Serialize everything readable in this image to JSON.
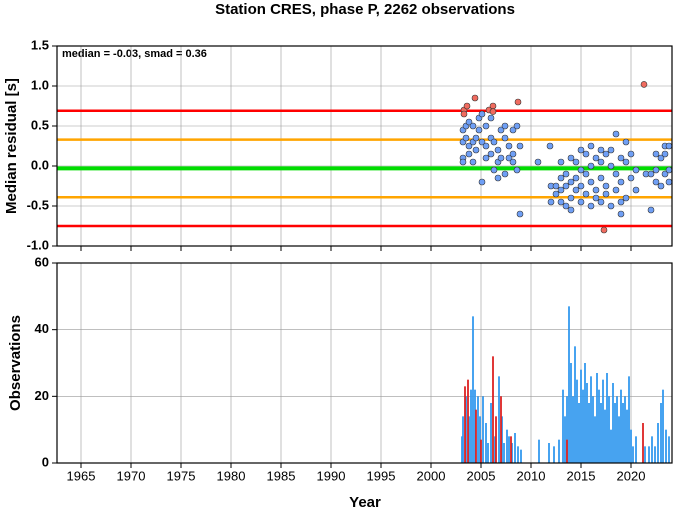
{
  "chart_data": [
    {
      "type": "scatter",
      "title": "Station CRES, phase P, 2262 observations",
      "y_label": "Median residual [s]",
      "annotation": "median = -0.03, smad = 0.36",
      "xlim": [
        1962.6,
        2024.1
      ],
      "xticks": [
        1965,
        1970,
        1975,
        1980,
        1985,
        1990,
        1995,
        2000,
        2005,
        2010,
        2015,
        2020
      ],
      "ylim": [
        -1,
        1.5
      ],
      "yticks": [
        1.5,
        {
          "value": 1,
          "label": "1.0"
        },
        0.5,
        {
          "value": 0,
          "label": "0.0"
        },
        -0.5,
        {
          "value": -1,
          "label": "-1.0"
        }
      ],
      "grid": true,
      "reference_lines": [
        {
          "value": 0.69,
          "color": "#ff0000"
        },
        {
          "value": 0.33,
          "color": "#ffa500"
        },
        {
          "value": -0.03,
          "color": "#00dd00"
        },
        {
          "value": -0.39,
          "color": "#ffa500"
        },
        {
          "value": -0.75,
          "color": "#ff0000"
        }
      ],
      "series": [
        {
          "color": "#6f9ff5",
          "x": [
            2003.2,
            2003.2,
            2003.2,
            2003.2,
            2003.5,
            2003.5,
            2003.8,
            2003.8,
            2003.8,
            2004.2,
            2004.2,
            2004.2,
            2004.5,
            2004.5,
            2004.8,
            2004.8,
            2005.1,
            2005.1,
            2005.1,
            2005.5,
            2005.5,
            2005.5,
            2006,
            2006,
            2006,
            2006.3,
            2006.3,
            2006.7,
            2006.7,
            2006.7,
            2007,
            2007,
            2007.4,
            2007.4,
            2007.4,
            2007.8,
            2007.8,
            2008.2,
            2008.2,
            2008.2,
            2008.6,
            2008.6,
            2008.9,
            2008.9,
            2010.7,
            2011.9,
            2012,
            2012,
            2012.5,
            2012.5,
            2013,
            2013,
            2013,
            2013,
            2013.5,
            2013.5,
            2013.5,
            2014,
            2014,
            2014,
            2014,
            2014.5,
            2014.5,
            2014.5,
            2015,
            2015,
            2015,
            2015,
            2015.5,
            2015.5,
            2015.5,
            2016,
            2016,
            2016,
            2016,
            2016.5,
            2016.5,
            2016.5,
            2017,
            2017,
            2017,
            2017,
            2017.5,
            2017.5,
            2017.5,
            2018,
            2018,
            2018,
            2018.5,
            2018.5,
            2018.5,
            2019,
            2019,
            2019,
            2019,
            2019.5,
            2019.5,
            2019.5,
            2020,
            2020,
            2020.5,
            2020.5,
            2021.5,
            2022,
            2022,
            2022.5,
            2022.5,
            2022.5,
            2023,
            2023,
            2023.4,
            2023.4,
            2023.4,
            2023.8,
            2023.8,
            2023.8
          ],
          "values": [
            0.3,
            0.1,
            0.05,
            0.45,
            0.5,
            0.35,
            0.25,
            0.55,
            0.15,
            0.3,
            0.5,
            0.05,
            0.35,
            0.2,
            0.45,
            0.6,
            0.3,
            -0.2,
            0.65,
            0.5,
            0.25,
            0.1,
            0.6,
            0.35,
            0.15,
            0.3,
            -0.05,
            0.2,
            -0.15,
            0.05,
            0.45,
            0.1,
            0.35,
            -0.1,
            0.5,
            0.1,
            0.25,
            0.05,
            0.45,
            0.15,
            0.5,
            -0.05,
            0.25,
            -0.6,
            0.05,
            0.25,
            -0.25,
            -0.45,
            -0.25,
            -0.35,
            0.05,
            -0.15,
            -0.3,
            -0.45,
            -0.1,
            -0.25,
            -0.5,
            0.1,
            -0.2,
            -0.4,
            -0.55,
            0.05,
            -0.15,
            -0.3,
            0.2,
            -0.05,
            -0.25,
            -0.45,
            0.15,
            -0.1,
            -0.35,
            0.25,
            0,
            -0.2,
            -0.5,
            0.1,
            -0.3,
            -0.4,
            0.2,
            0.05,
            -0.15,
            -0.45,
            0.15,
            -0.25,
            -0.35,
            0.2,
            0,
            -0.5,
            0.4,
            -0.1,
            -0.3,
            0.1,
            -0.2,
            -0.45,
            -0.6,
            0.3,
            0.05,
            -0.4,
            0.15,
            -0.15,
            -0.05,
            -0.3,
            -0.1,
            -0.55,
            -0.1,
            0.15,
            -0.05,
            -0.2,
            0.1,
            -0.25,
            0.15,
            -0.1,
            0.25,
            0.25,
            -0.05,
            -0.2
          ]
        },
        {
          "color": "#f06b5f",
          "x": [
            2003.3,
            2003.3,
            2003.6,
            2004.4,
            2005.8,
            2006.2,
            2006.2,
            2008.7,
            2017.3,
            2021.3
          ],
          "values": [
            0.7,
            0.65,
            0.75,
            0.85,
            0.7,
            0.75,
            0.68,
            0.8,
            -0.8,
            1.02
          ]
        }
      ]
    },
    {
      "type": "bar",
      "y_label": "Observations",
      "x_label": "Year",
      "xlim": [
        1962.6,
        2024.1
      ],
      "xticks": [
        1965,
        1970,
        1975,
        1980,
        1985,
        1990,
        1995,
        2000,
        2005,
        2010,
        2015,
        2020
      ],
      "ylim": [
        0,
        60
      ],
      "yticks": [
        0,
        20,
        40,
        60
      ],
      "grid": true,
      "series": [
        {
          "color": "#3399ee",
          "x": [
            2003.1,
            2003.2,
            2003.5,
            2003.8,
            2004.0,
            2004.2,
            2004.4,
            2004.7,
            2004.9,
            2005.2,
            2005.5,
            2005.7,
            2006.0,
            2006.4,
            2006.8,
            2007.1,
            2007.3,
            2007.6,
            2007.8,
            2008.1,
            2008.4,
            2008.7,
            2009.0,
            2010.8,
            2011.8,
            2012.3,
            2012.8,
            2013.2,
            2013.4,
            2013.6,
            2013.8,
            2014.0,
            2014.2,
            2014.4,
            2014.6,
            2014.8,
            2015.0,
            2015.2,
            2015.4,
            2015.6,
            2015.8,
            2016.0,
            2016.2,
            2016.4,
            2016.6,
            2016.8,
            2017.0,
            2017.2,
            2017.4,
            2017.6,
            2017.8,
            2018.0,
            2018.2,
            2018.4,
            2018.6,
            2018.8,
            2019.0,
            2019.2,
            2019.4,
            2019.6,
            2019.8,
            2020.0,
            2020.2,
            2020.5,
            2021.4,
            2021.8,
            2022.1,
            2022.4,
            2022.7,
            2023.0,
            2023.2,
            2023.5,
            2023.8
          ],
          "values": [
            8,
            14,
            20,
            14,
            22,
            44,
            22,
            20,
            14,
            20,
            12,
            6,
            18,
            8,
            26,
            14,
            6,
            10,
            8,
            6,
            9,
            5,
            4,
            7,
            6,
            5,
            7,
            22,
            14,
            20,
            47,
            30,
            20,
            35,
            25,
            18,
            28,
            22,
            30,
            24,
            18,
            26,
            20,
            14,
            27,
            22,
            18,
            25,
            16,
            27,
            20,
            10,
            24,
            18,
            20,
            14,
            22,
            18,
            20,
            16,
            26,
            10,
            5,
            8,
            5,
            5,
            8,
            5,
            12,
            18,
            22,
            10,
            8
          ]
        },
        {
          "color": "#dd2222",
          "x": [
            2003.4,
            2003.7,
            2004.5,
            2005.0,
            2006.2,
            2006.5,
            2007.0,
            2008.0,
            2013.6,
            2021.2
          ],
          "values": [
            23,
            25,
            16,
            7,
            32,
            14,
            20,
            8,
            7,
            12
          ]
        }
      ]
    }
  ]
}
